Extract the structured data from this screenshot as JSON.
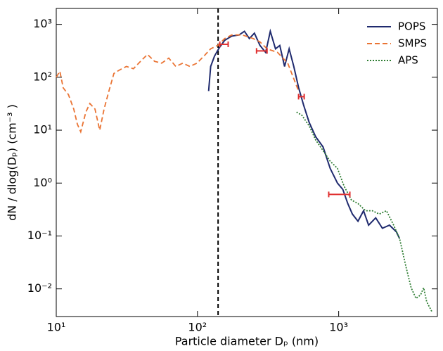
{
  "chart_data": {
    "type": "line",
    "xlabel": "Particle diameter Dₚ (nm)",
    "ylabel": "dN / dlog(Dₚ) (cm⁻³ )",
    "xscale": "log",
    "yscale": "log",
    "xlim": [
      10,
      5000
    ],
    "ylim": [
      0.003,
      2000
    ],
    "xticks": [
      {
        "value": 10,
        "label": "10¹"
      },
      {
        "value": 100,
        "label": "10²"
      },
      {
        "value": 1000,
        "label": "10³"
      }
    ],
    "yticks": [
      {
        "value": 0.01,
        "label": "10⁻²"
      },
      {
        "value": 0.1,
        "label": "10⁻¹"
      },
      {
        "value": 1,
        "label": "10⁰"
      },
      {
        "value": 10,
        "label": "10¹"
      },
      {
        "value": 100,
        "label": "10²"
      },
      {
        "value": 1000,
        "label": "10³"
      }
    ],
    "legend": "upper right",
    "vline": 140,
    "series": [
      {
        "name": "POPS",
        "color": "#1f2a6e",
        "dash": "solid",
        "x": [
          120,
          124,
          132,
          143,
          156,
          175,
          197,
          215,
          233,
          253,
          277,
          304,
          328,
          357,
          383,
          414,
          446,
          481,
          520,
          564,
          618,
          688,
          776,
          870,
          980,
          1070,
          1160,
          1250,
          1370,
          1500,
          1630,
          1830,
          2040,
          2290,
          2560,
          2700
        ],
        "values": [
          55,
          160,
          250,
          365,
          500,
          600,
          630,
          740,
          540,
          680,
          400,
          295,
          740,
          345,
          400,
          160,
          345,
          160,
          64,
          30,
          14,
          7.5,
          4.8,
          1.9,
          1.0,
          0.76,
          0.41,
          0.26,
          0.19,
          0.3,
          0.16,
          0.22,
          0.14,
          0.16,
          0.12,
          0.089
        ]
      },
      {
        "name": "SMPS",
        "color": "#ea7434",
        "dash": "dashed",
        "x": [
          10,
          10.6,
          11.2,
          12.2,
          13.3,
          14.1,
          14.9,
          16.2,
          17.3,
          18.8,
          20.3,
          21.8,
          23.6,
          25.6,
          28.0,
          31.4,
          35.2,
          39.5,
          44.3,
          49.7,
          55.8,
          62.6,
          70.2,
          78.7,
          88.3,
          99.1,
          111,
          124,
          139,
          156,
          175,
          208,
          248,
          277,
          311,
          369,
          436,
          520
        ],
        "values": [
          100,
          130,
          63,
          47,
          25,
          13,
          9.3,
          22,
          32,
          25,
          10,
          25,
          55,
          118,
          137,
          160,
          145,
          200,
          270,
          200,
          185,
          230,
          160,
          185,
          160,
          185,
          250,
          345,
          400,
          540,
          630,
          630,
          540,
          465,
          345,
          295,
          185,
          55
        ]
      },
      {
        "name": "APS",
        "color": "#2e7d32",
        "dash": "dotted",
        "x": [
          503,
          550,
          618,
          688,
          776,
          870,
          980,
          1090,
          1230,
          1370,
          1550,
          1730,
          1940,
          2180,
          2450,
          2700,
          3000,
          3260,
          3530,
          3800,
          4000,
          4200,
          4600
        ],
        "values": [
          22,
          19,
          12,
          6.5,
          4.1,
          2.6,
          1.9,
          0.88,
          0.48,
          0.41,
          0.3,
          0.3,
          0.26,
          0.3,
          0.16,
          0.089,
          0.026,
          0.0105,
          0.0066,
          0.0077,
          0.0105,
          0.0057,
          0.0036
        ]
      }
    ],
    "error_bars": {
      "color": "#e03030",
      "x_low": [
        144,
        262,
        520,
        850
      ],
      "x_high": [
        165,
        311,
        570,
        1200
      ],
      "y": [
        420,
        315,
        43,
        0.61
      ]
    }
  }
}
